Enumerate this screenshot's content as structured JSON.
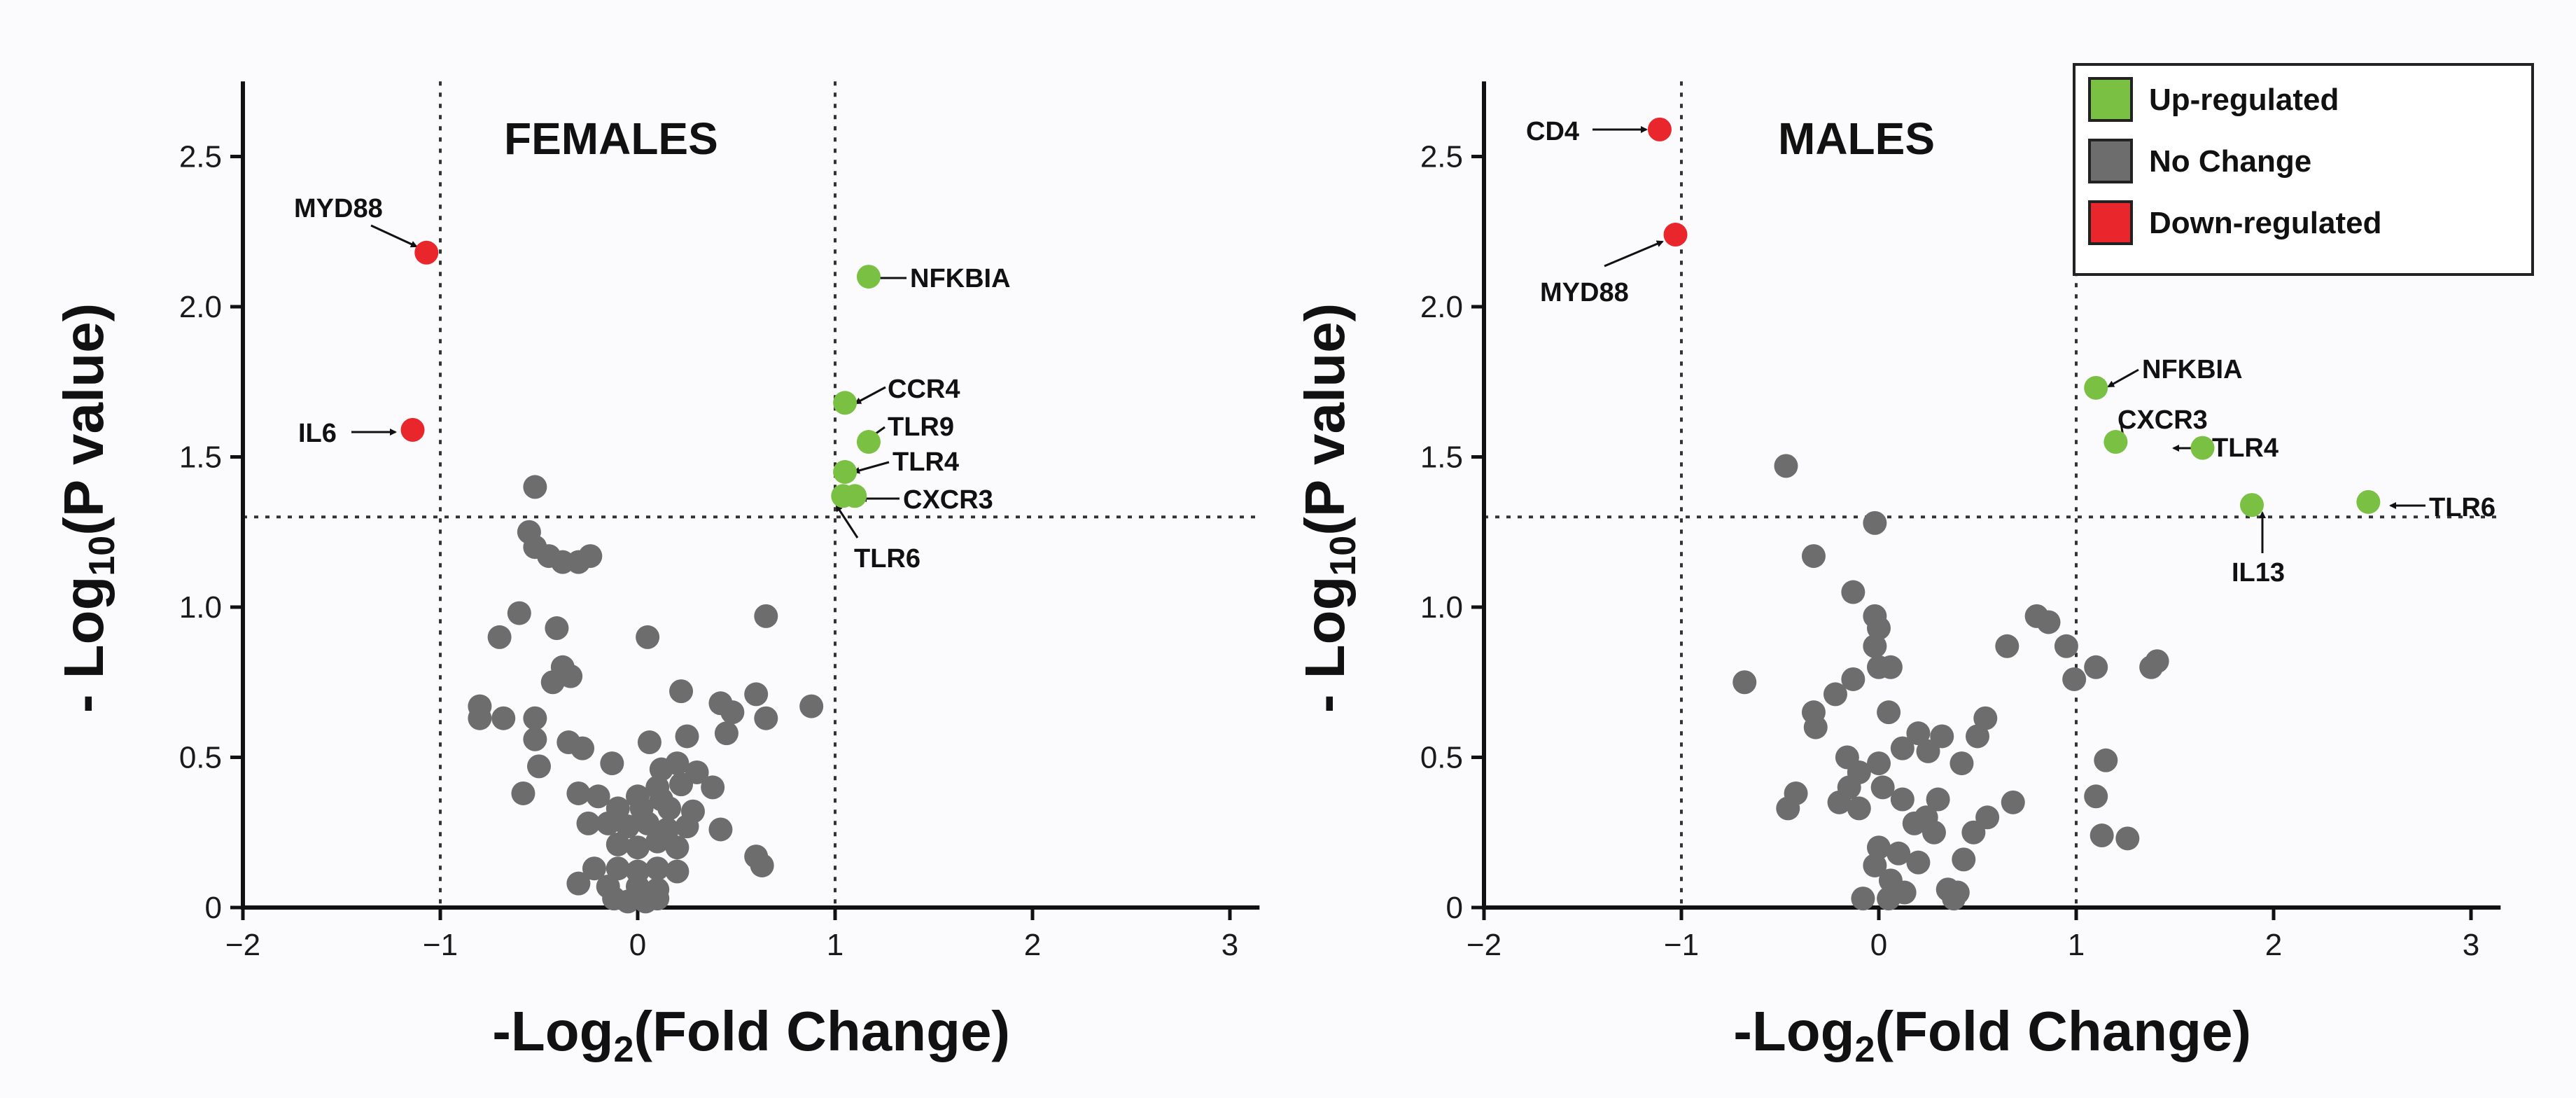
{
  "legend": {
    "items": [
      {
        "label": "Up-regulated",
        "color": "#7ac143"
      },
      {
        "label": "No Change",
        "color": "#6d6d6d"
      },
      {
        "label": "Down-regulated",
        "color": "#e8262b"
      }
    ]
  },
  "chart_data": [
    {
      "type": "scatter",
      "title": "FEMALES",
      "xlabel": "-Log2(Fold Change)",
      "ylabel": "- Log10(P value)",
      "xlim": [
        -2,
        3.15
      ],
      "ylim": [
        0,
        2.75
      ],
      "xticks": [
        "−2",
        "−1",
        "0",
        "1",
        "2",
        "3"
      ],
      "yticks": [
        "0",
        "0.5",
        "1.0",
        "1.5",
        "2.0",
        "2.5"
      ],
      "thresholds": {
        "x": [
          -1,
          1
        ],
        "y": 1.3
      },
      "labeled_points": [
        {
          "label": "MYD88",
          "x": -1.07,
          "y": 2.18,
          "status": "down"
        },
        {
          "label": "IL6",
          "x": -1.14,
          "y": 1.59,
          "status": "down"
        },
        {
          "label": "NFKBIA",
          "x": 1.17,
          "y": 2.1,
          "status": "up"
        },
        {
          "label": "CCR4",
          "x": 1.05,
          "y": 1.68,
          "status": "up"
        },
        {
          "label": "TLR9",
          "x": 1.17,
          "y": 1.55,
          "status": "up"
        },
        {
          "label": "TLR4",
          "x": 1.05,
          "y": 1.45,
          "status": "up"
        },
        {
          "label": "CXCR3",
          "x": 1.1,
          "y": 1.37,
          "status": "up"
        },
        {
          "label": "TLR6",
          "x": 1.04,
          "y": 1.37,
          "status": "up"
        }
      ],
      "no_change_points": [
        [
          -0.52,
          1.4
        ],
        [
          -0.55,
          1.25
        ],
        [
          -0.52,
          1.2
        ],
        [
          -0.45,
          1.17
        ],
        [
          -0.38,
          1.15
        ],
        [
          -0.3,
          1.15
        ],
        [
          -0.24,
          1.17
        ],
        [
          -0.6,
          0.98
        ],
        [
          -0.41,
          0.93
        ],
        [
          0.05,
          0.9
        ],
        [
          -0.7,
          0.9
        ],
        [
          -0.38,
          0.8
        ],
        [
          0.65,
          0.97
        ],
        [
          -0.43,
          0.75
        ],
        [
          -0.34,
          0.77
        ],
        [
          0.6,
          0.71
        ],
        [
          0.22,
          0.72
        ],
        [
          0.42,
          0.68
        ],
        [
          0.88,
          0.67
        ],
        [
          -0.8,
          0.67
        ],
        [
          -0.8,
          0.63
        ],
        [
          -0.68,
          0.63
        ],
        [
          -0.52,
          0.63
        ],
        [
          0.65,
          0.63
        ],
        [
          0.48,
          0.65
        ],
        [
          -0.52,
          0.56
        ],
        [
          -0.35,
          0.55
        ],
        [
          -0.28,
          0.53
        ],
        [
          0.06,
          0.55
        ],
        [
          0.25,
          0.57
        ],
        [
          0.45,
          0.58
        ],
        [
          -0.5,
          0.47
        ],
        [
          -0.13,
          0.48
        ],
        [
          0.12,
          0.46
        ],
        [
          0.2,
          0.48
        ],
        [
          0.3,
          0.45
        ],
        [
          -0.58,
          0.38
        ],
        [
          -0.3,
          0.38
        ],
        [
          -0.2,
          0.37
        ],
        [
          0.0,
          0.37
        ],
        [
          0.1,
          0.4
        ],
        [
          0.22,
          0.41
        ],
        [
          0.38,
          0.4
        ],
        [
          -0.1,
          0.33
        ],
        [
          0.02,
          0.33
        ],
        [
          0.16,
          0.33
        ],
        [
          0.28,
          0.32
        ],
        [
          0.12,
          0.36
        ],
        [
          -0.25,
          0.28
        ],
        [
          -0.15,
          0.28
        ],
        [
          -0.05,
          0.27
        ],
        [
          0.05,
          0.28
        ],
        [
          0.15,
          0.26
        ],
        [
          0.25,
          0.27
        ],
        [
          0.42,
          0.26
        ],
        [
          -0.1,
          0.21
        ],
        [
          0.0,
          0.2
        ],
        [
          0.1,
          0.22
        ],
        [
          0.2,
          0.2
        ],
        [
          0.6,
          0.17
        ],
        [
          0.63,
          0.14
        ],
        [
          -0.22,
          0.13
        ],
        [
          -0.1,
          0.13
        ],
        [
          0.0,
          0.12
        ],
        [
          0.1,
          0.13
        ],
        [
          0.2,
          0.12
        ],
        [
          -0.3,
          0.08
        ],
        [
          -0.15,
          0.07
        ],
        [
          0.0,
          0.07
        ],
        [
          0.1,
          0.06
        ],
        [
          -0.12,
          0.03
        ],
        [
          -0.05,
          0.02
        ],
        [
          0.04,
          0.02
        ],
        [
          0.1,
          0.03
        ]
      ]
    },
    {
      "type": "scatter",
      "title": "MALES",
      "xlabel": "-Log2(Fold Change)",
      "ylabel": "- Log10(P value)",
      "xlim": [
        -2,
        3.15
      ],
      "ylim": [
        0,
        2.75
      ],
      "xticks": [
        "−2",
        "−1",
        "0",
        "1",
        "2",
        "3"
      ],
      "yticks": [
        "0",
        "0.5",
        "1.0",
        "1.5",
        "2.0",
        "2.5"
      ],
      "thresholds": {
        "x": [
          -1,
          1
        ],
        "y": 1.3
      },
      "labeled_points": [
        {
          "label": "CD4",
          "x": -1.11,
          "y": 2.59,
          "status": "down"
        },
        {
          "label": "MYD88",
          "x": -1.03,
          "y": 2.24,
          "status": "down"
        },
        {
          "label": "NFKBIA",
          "x": 1.1,
          "y": 1.73,
          "status": "up"
        },
        {
          "label": "CXCR3",
          "x": 1.2,
          "y": 1.55,
          "status": "up"
        },
        {
          "label": "TLR4",
          "x": 1.64,
          "y": 1.53,
          "status": "up"
        },
        {
          "label": "IL13",
          "x": 1.89,
          "y": 1.34,
          "status": "up"
        },
        {
          "label": "TLR6",
          "x": 2.48,
          "y": 1.35,
          "status": "up"
        }
      ],
      "no_change_points": [
        [
          -0.47,
          1.47
        ],
        [
          -0.02,
          1.28
        ],
        [
          -0.33,
          1.17
        ],
        [
          -0.13,
          1.05
        ],
        [
          -0.02,
          0.97
        ],
        [
          0.0,
          0.93
        ],
        [
          -0.02,
          0.87
        ],
        [
          0.8,
          0.97
        ],
        [
          0.86,
          0.95
        ],
        [
          0.95,
          0.87
        ],
        [
          0.65,
          0.87
        ],
        [
          1.1,
          0.8
        ],
        [
          1.38,
          0.8
        ],
        [
          1.41,
          0.82
        ],
        [
          -0.68,
          0.75
        ],
        [
          -0.13,
          0.76
        ],
        [
          0.0,
          0.8
        ],
        [
          0.06,
          0.8
        ],
        [
          -0.22,
          0.71
        ],
        [
          -0.33,
          0.65
        ],
        [
          -0.32,
          0.6
        ],
        [
          0.05,
          0.65
        ],
        [
          0.54,
          0.63
        ],
        [
          0.99,
          0.76
        ],
        [
          0.5,
          0.57
        ],
        [
          0.2,
          0.58
        ],
        [
          0.32,
          0.57
        ],
        [
          0.12,
          0.53
        ],
        [
          -0.16,
          0.5
        ],
        [
          0.25,
          0.52
        ],
        [
          0.42,
          0.48
        ],
        [
          -0.1,
          0.45
        ],
        [
          0.0,
          0.48
        ],
        [
          1.15,
          0.49
        ],
        [
          0.68,
          0.35
        ],
        [
          0.55,
          0.3
        ],
        [
          -0.42,
          0.38
        ],
        [
          -0.46,
          0.33
        ],
        [
          -0.15,
          0.4
        ],
        [
          0.02,
          0.4
        ],
        [
          0.12,
          0.36
        ],
        [
          0.3,
          0.36
        ],
        [
          -0.1,
          0.33
        ],
        [
          0.24,
          0.3
        ],
        [
          1.1,
          0.37
        ],
        [
          -0.2,
          0.35
        ],
        [
          0.18,
          0.28
        ],
        [
          0.28,
          0.25
        ],
        [
          0.48,
          0.25
        ],
        [
          1.13,
          0.24
        ],
        [
          1.26,
          0.23
        ],
        [
          0.0,
          0.2
        ],
        [
          0.1,
          0.18
        ],
        [
          0.2,
          0.15
        ],
        [
          0.43,
          0.16
        ],
        [
          -0.02,
          0.14
        ],
        [
          0.06,
          0.09
        ],
        [
          0.35,
          0.06
        ],
        [
          0.4,
          0.05
        ],
        [
          0.13,
          0.05
        ],
        [
          -0.08,
          0.03
        ],
        [
          0.05,
          0.03
        ],
        [
          0.38,
          0.03
        ]
      ]
    }
  ]
}
